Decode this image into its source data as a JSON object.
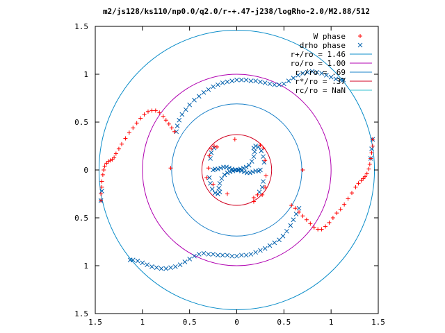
{
  "chart_data": {
    "type": "scatter",
    "title": "m2/js128/ks110/np0.0/q2.0/r-+.47-j238/logRho-2.0/M2.88/512",
    "xlim": [
      -1.5,
      1.5
    ],
    "ylim": [
      -1.5,
      1.5
    ],
    "x_tick_labels": [
      "1.5",
      "1",
      "0.5",
      "0",
      "0.5",
      "1",
      "1.5"
    ],
    "y_tick_labels": [
      "1.5",
      "1",
      "0.5",
      "0",
      "0.5",
      "1",
      "1.5"
    ],
    "legend_position": "top-right",
    "grid": false,
    "series": [
      {
        "name": "W phase",
        "marker": "plus",
        "color": "#ff0000",
        "points": [
          [
            -1.44,
            -0.32
          ],
          [
            -1.44,
            -0.25
          ],
          [
            -1.43,
            -0.18
          ],
          [
            -1.43,
            -0.12
          ],
          [
            -1.42,
            -0.05
          ],
          [
            -1.41,
            0.0
          ],
          [
            -1.4,
            0.04
          ],
          [
            -1.38,
            0.07
          ],
          [
            -1.36,
            0.09
          ],
          [
            -1.34,
            0.1
          ],
          [
            -1.32,
            0.11
          ],
          [
            -1.3,
            0.13
          ],
          [
            -1.28,
            0.17
          ],
          [
            -1.25,
            0.22
          ],
          [
            -1.22,
            0.27
          ],
          [
            -1.18,
            0.33
          ],
          [
            -1.14,
            0.39
          ],
          [
            -1.1,
            0.44
          ],
          [
            -1.06,
            0.49
          ],
          [
            -1.02,
            0.54
          ],
          [
            -0.98,
            0.58
          ],
          [
            -0.94,
            0.61
          ],
          [
            -0.9,
            0.62
          ],
          [
            -0.86,
            0.62
          ],
          [
            -0.82,
            0.6
          ],
          [
            -0.78,
            0.56
          ],
          [
            -0.75,
            0.52
          ],
          [
            -0.72,
            0.48
          ],
          [
            -0.69,
            0.44
          ],
          [
            -0.66,
            0.4
          ],
          [
            1.44,
            0.32
          ],
          [
            1.44,
            0.25
          ],
          [
            1.43,
            0.18
          ],
          [
            1.42,
            0.12
          ],
          [
            1.41,
            0.06
          ],
          [
            1.4,
            0.01
          ],
          [
            1.38,
            -0.04
          ],
          [
            1.36,
            -0.07
          ],
          [
            1.34,
            -0.09
          ],
          [
            1.32,
            -0.11
          ],
          [
            1.29,
            -0.14
          ],
          [
            1.26,
            -0.18
          ],
          [
            1.22,
            -0.24
          ],
          [
            1.18,
            -0.3
          ],
          [
            1.14,
            -0.36
          ],
          [
            1.1,
            -0.41
          ],
          [
            1.06,
            -0.45
          ],
          [
            1.02,
            -0.5
          ],
          [
            0.98,
            -0.55
          ],
          [
            0.94,
            -0.59
          ],
          [
            0.9,
            -0.62
          ],
          [
            0.86,
            -0.62
          ],
          [
            0.82,
            -0.6
          ],
          [
            0.78,
            -0.56
          ],
          [
            0.74,
            -0.52
          ],
          [
            0.7,
            -0.48
          ],
          [
            0.66,
            -0.44
          ],
          [
            0.62,
            -0.4
          ],
          [
            0.58,
            -0.37
          ],
          [
            -0.3,
            0.02
          ],
          [
            -0.29,
            0.15
          ],
          [
            -0.27,
            0.22
          ],
          [
            -0.24,
            0.25
          ],
          [
            -0.21,
            0.24
          ],
          [
            -0.32,
            -0.08
          ],
          [
            -0.25,
            -0.15
          ],
          [
            -0.1,
            -0.25
          ],
          [
            -0.02,
            0.32
          ],
          [
            0.18,
            -0.29
          ],
          [
            0.22,
            -0.26
          ],
          [
            0.25,
            0.26
          ],
          [
            0.28,
            0.23
          ],
          [
            0.3,
            0.1
          ],
          [
            0.31,
            -0.06
          ],
          [
            0.3,
            -0.18
          ],
          [
            0.27,
            -0.26
          ],
          [
            0.7,
            0.0
          ],
          [
            -0.7,
            0.02
          ],
          [
            0.18,
            -0.33
          ]
        ]
      },
      {
        "name": "drho phase",
        "marker": "cross",
        "color": "#0060ad",
        "points": [
          [
            1.44,
            0.32
          ],
          [
            1.43,
            0.22
          ],
          [
            1.42,
            0.12
          ],
          [
            -1.44,
            -0.32
          ],
          [
            -1.43,
            -0.22
          ],
          [
            0.66,
            -0.4
          ],
          [
            0.63,
            -0.46
          ],
          [
            0.6,
            -0.52
          ],
          [
            0.57,
            -0.58
          ],
          [
            0.53,
            -0.64
          ],
          [
            0.49,
            -0.69
          ],
          [
            0.45,
            -0.73
          ],
          [
            0.4,
            -0.76
          ],
          [
            0.35,
            -0.79
          ],
          [
            0.3,
            -0.82
          ],
          [
            0.25,
            -0.84
          ],
          [
            0.2,
            -0.86
          ],
          [
            0.15,
            -0.88
          ],
          [
            0.1,
            -0.89
          ],
          [
            0.05,
            -0.89
          ],
          [
            0.0,
            -0.9
          ],
          [
            -0.05,
            -0.9
          ],
          [
            -0.1,
            -0.89
          ],
          [
            -0.15,
            -0.89
          ],
          [
            -0.2,
            -0.89
          ],
          [
            -0.25,
            -0.88
          ],
          [
            -0.3,
            -0.88
          ],
          [
            -0.35,
            -0.87
          ],
          [
            -0.4,
            -0.88
          ],
          [
            -0.45,
            -0.9
          ],
          [
            -0.5,
            -0.93
          ],
          [
            -0.55,
            -0.96
          ],
          [
            -0.6,
            -0.99
          ],
          [
            -0.65,
            -1.01
          ],
          [
            -0.7,
            -1.02
          ],
          [
            -0.75,
            -1.03
          ],
          [
            -0.8,
            -1.03
          ],
          [
            -0.85,
            -1.02
          ],
          [
            -0.9,
            -1.01
          ],
          [
            -0.95,
            -0.99
          ],
          [
            -1.0,
            -0.97
          ],
          [
            -1.05,
            -0.95
          ],
          [
            -1.1,
            -0.94
          ],
          [
            -1.13,
            -0.94
          ],
          [
            -0.64,
            0.4
          ],
          [
            -0.63,
            0.46
          ],
          [
            -0.61,
            0.52
          ],
          [
            -0.58,
            0.58
          ],
          [
            -0.54,
            0.63
          ],
          [
            -0.5,
            0.68
          ],
          [
            -0.45,
            0.73
          ],
          [
            -0.4,
            0.77
          ],
          [
            -0.35,
            0.81
          ],
          [
            -0.3,
            0.84
          ],
          [
            -0.25,
            0.87
          ],
          [
            -0.2,
            0.89
          ],
          [
            -0.15,
            0.91
          ],
          [
            -0.1,
            0.92
          ],
          [
            -0.05,
            0.93
          ],
          [
            0.0,
            0.94
          ],
          [
            0.05,
            0.94
          ],
          [
            0.1,
            0.94
          ],
          [
            0.15,
            0.93
          ],
          [
            0.2,
            0.93
          ],
          [
            0.25,
            0.92
          ],
          [
            0.3,
            0.91
          ],
          [
            0.35,
            0.9
          ],
          [
            0.4,
            0.89
          ],
          [
            0.45,
            0.89
          ],
          [
            0.5,
            0.9
          ],
          [
            0.55,
            0.93
          ],
          [
            0.6,
            0.96
          ],
          [
            0.65,
            0.99
          ],
          [
            0.7,
            1.01
          ],
          [
            0.75,
            1.02
          ],
          [
            0.8,
            1.03
          ],
          [
            0.85,
            1.02
          ],
          [
            0.9,
            1.01
          ],
          [
            0.95,
            0.99
          ],
          [
            1.0,
            0.97
          ],
          [
            1.05,
            0.95
          ],
          [
            1.1,
            0.94
          ],
          [
            1.13,
            0.94
          ],
          [
            -0.25,
            0.0
          ],
          [
            -0.23,
            0.01
          ],
          [
            -0.2,
            0.01
          ],
          [
            -0.17,
            0.02
          ],
          [
            -0.14,
            0.03
          ],
          [
            -0.11,
            0.03
          ],
          [
            -0.08,
            0.02
          ],
          [
            -0.05,
            0.01
          ],
          [
            -0.02,
            0.0
          ],
          [
            0.01,
            0.0
          ],
          [
            0.04,
            0.01
          ],
          [
            0.07,
            0.02
          ],
          [
            0.1,
            0.03
          ],
          [
            0.13,
            0.05
          ],
          [
            0.16,
            0.09
          ],
          [
            0.18,
            0.14
          ],
          [
            0.19,
            0.19
          ],
          [
            0.18,
            0.23
          ],
          [
            0.2,
            0.25
          ],
          [
            0.23,
            0.24
          ],
          [
            0.26,
            0.2
          ],
          [
            0.28,
            0.14
          ],
          [
            0.29,
            0.08
          ],
          [
            0.25,
            0.0
          ],
          [
            0.23,
            -0.01
          ],
          [
            0.2,
            -0.01
          ],
          [
            0.17,
            -0.02
          ],
          [
            0.14,
            -0.03
          ],
          [
            0.11,
            -0.03
          ],
          [
            0.08,
            -0.02
          ],
          [
            0.05,
            -0.01
          ],
          [
            0.02,
            0.0
          ],
          [
            -0.01,
            0.0
          ],
          [
            -0.04,
            -0.01
          ],
          [
            -0.07,
            -0.02
          ],
          [
            -0.1,
            -0.03
          ],
          [
            -0.13,
            -0.05
          ],
          [
            -0.16,
            -0.09
          ],
          [
            -0.18,
            -0.14
          ],
          [
            -0.19,
            -0.19
          ],
          [
            -0.18,
            -0.23
          ],
          [
            -0.2,
            -0.25
          ],
          [
            -0.23,
            -0.24
          ],
          [
            -0.26,
            -0.2
          ],
          [
            -0.28,
            -0.14
          ],
          [
            -0.29,
            -0.08
          ],
          [
            -0.28,
            0.12
          ],
          [
            -0.27,
            0.18
          ],
          [
            -0.24,
            0.23
          ],
          [
            0.28,
            -0.12
          ],
          [
            0.27,
            -0.18
          ],
          [
            0.24,
            -0.23
          ]
        ]
      }
    ],
    "circles": [
      {
        "label": "r+/ro = 1.46",
        "radius": 1.46,
        "color": "#0b8dc9"
      },
      {
        "label": "ro/ro = 1.00",
        "radius": 1.0,
        "color": "#b000b0"
      },
      {
        "label": "r-/ro = .69",
        "radius": 0.69,
        "color": "#1a80c8"
      },
      {
        "label": "r*/ro = .37",
        "radius": 0.37,
        "color": "#d00020"
      },
      {
        "label": "rc/ro = NaN",
        "radius": null,
        "color": "#30c0d0"
      }
    ]
  }
}
